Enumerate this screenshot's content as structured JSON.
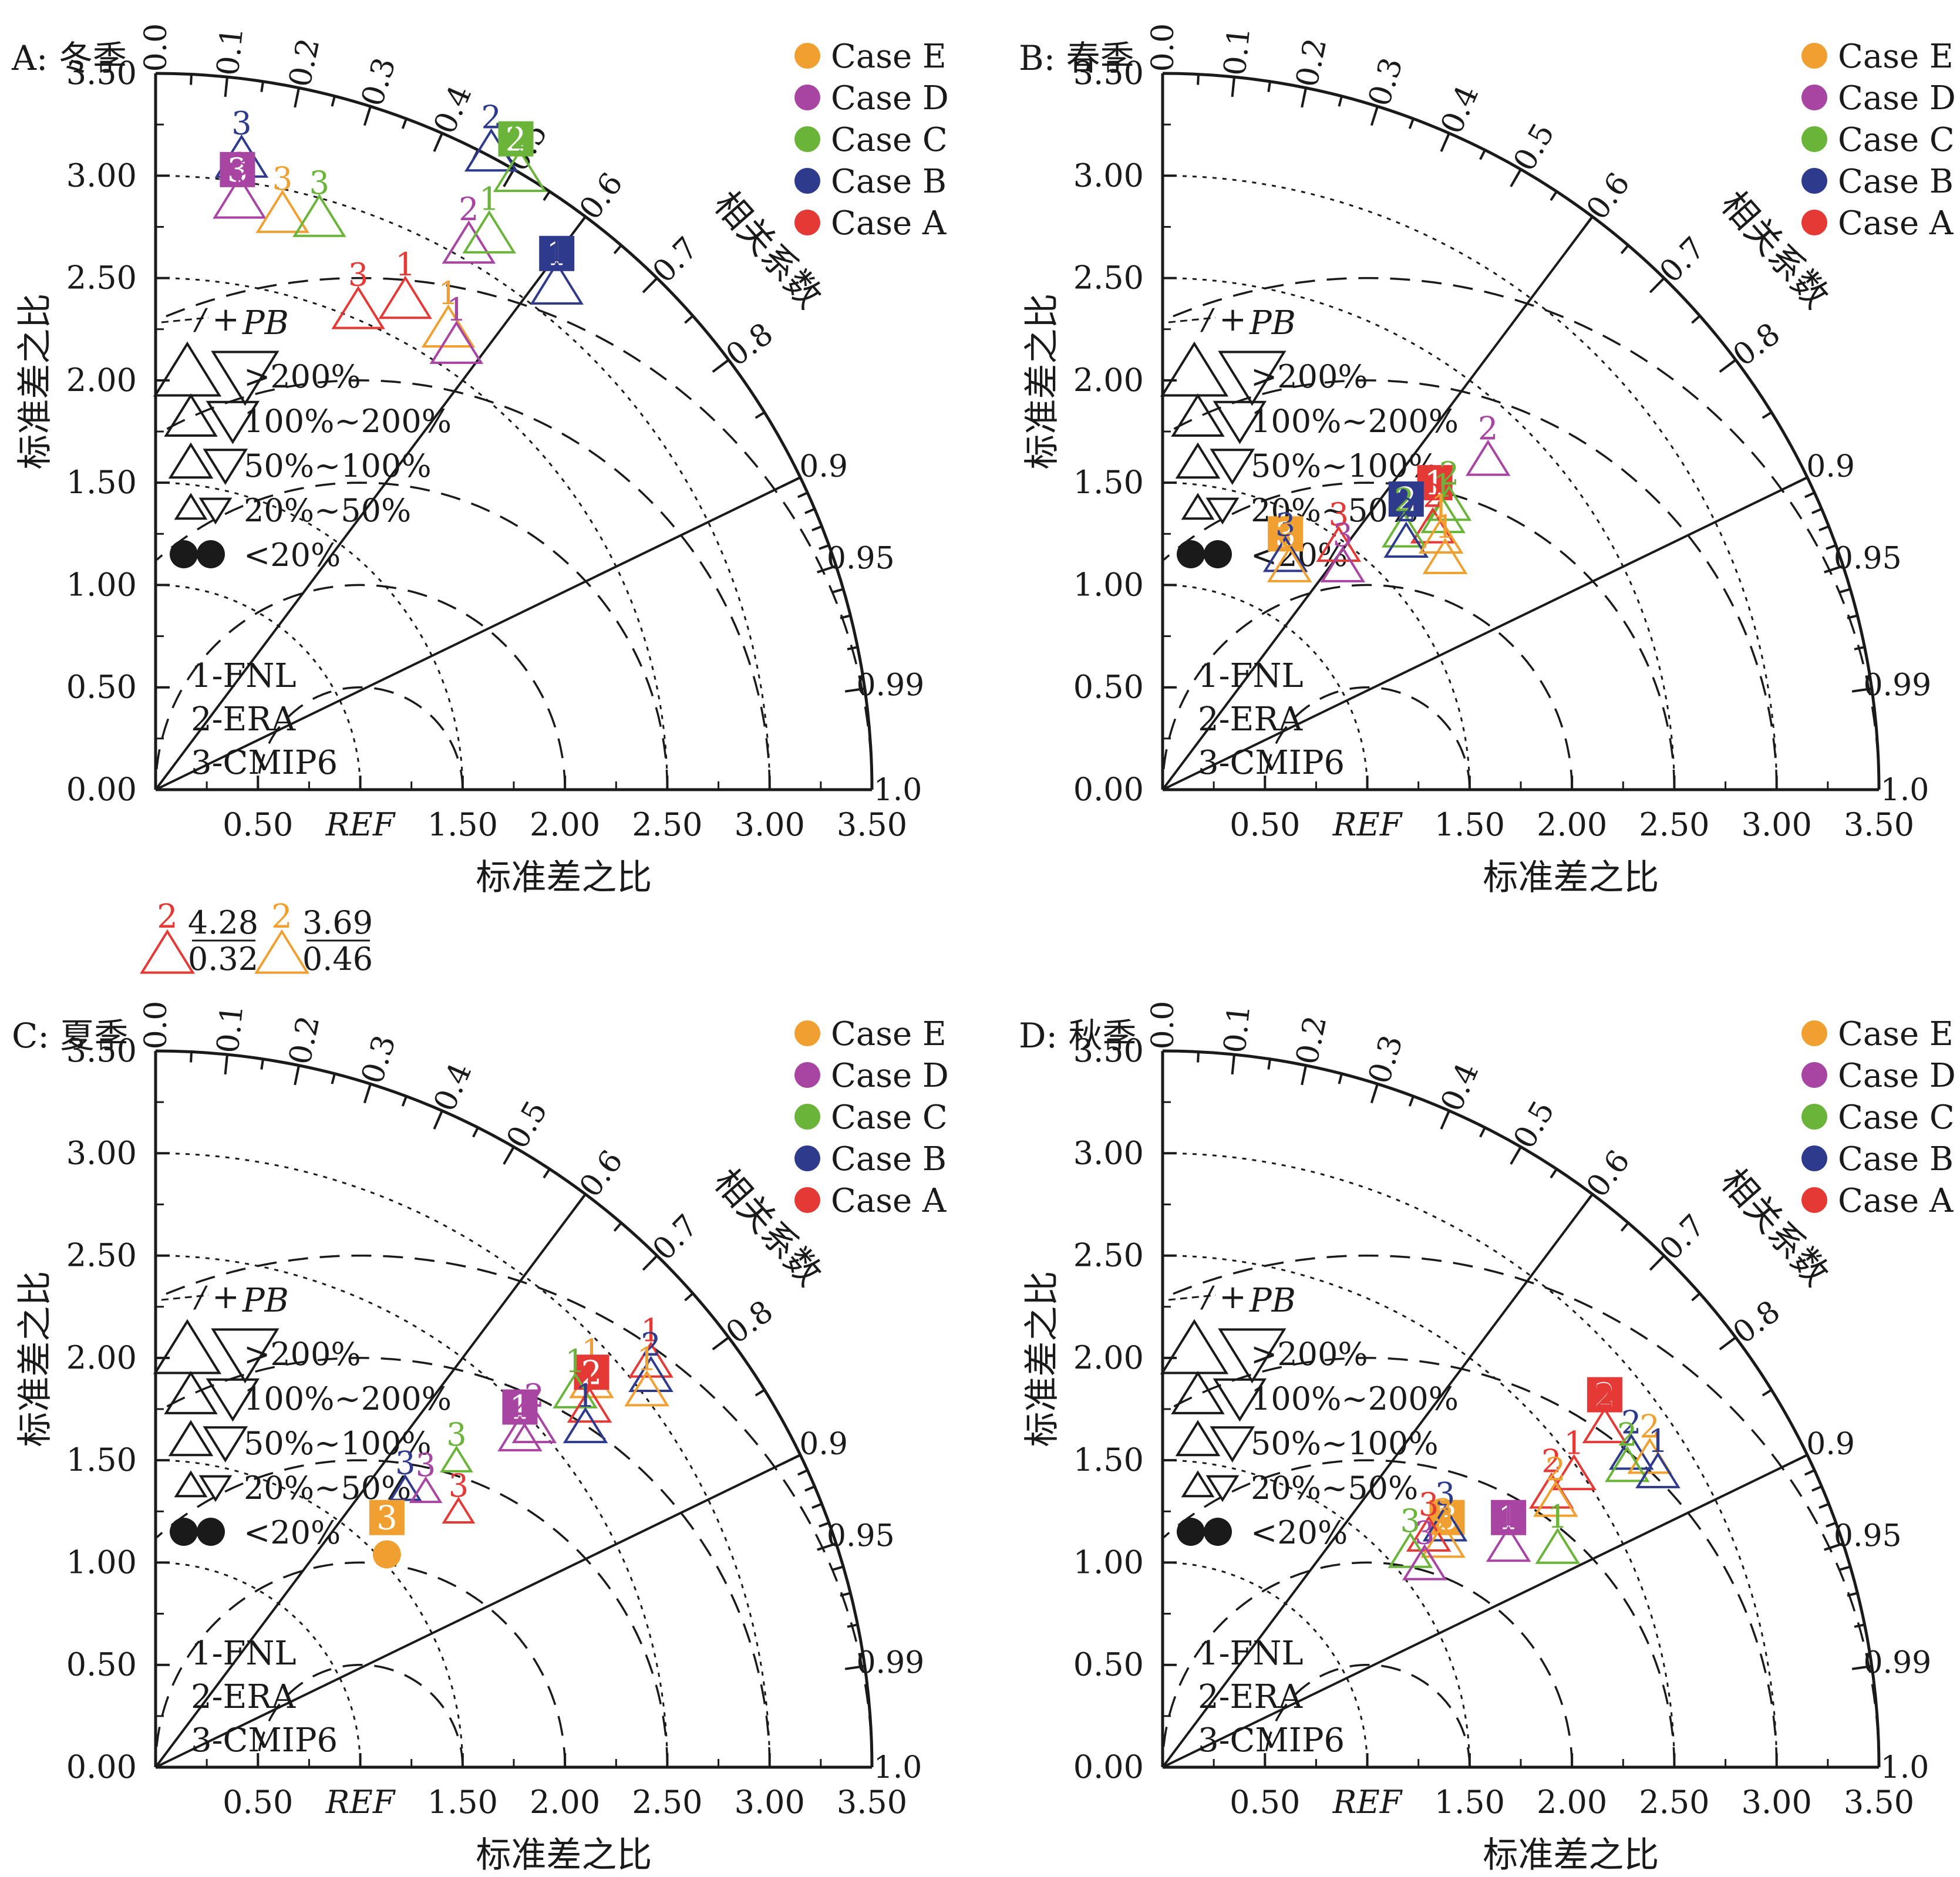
{
  "legend_common": {
    "pb_label": "PB",
    "size_classes": [
      ">200%",
      "100%~200%",
      "50%~100%",
      "20%~50%",
      "<20%"
    ],
    "dataset_keys": [
      "1-FNL",
      "2-ERA",
      "3-CMIP6"
    ]
  },
  "colors": {
    "Case A": "#e53935",
    "Case B": "#2e3a8c",
    "Case C": "#6ab43a",
    "Case D": "#a845a3",
    "Case E": "#f0a030",
    "axis": "#1a1a1a"
  },
  "offscale_note": [
    {
      "label": "2",
      "series": "Case A",
      "std": "4.28",
      "corr": "0.32"
    },
    {
      "label": "2",
      "series": "Case E",
      "std": "3.69",
      "corr": "0.46"
    }
  ],
  "chart_data": [
    {
      "type": "taylor",
      "title": "A: 冬季",
      "xlabel": "标准差之比",
      "ylabel": "标准差之比",
      "corr_label": "相关系数",
      "std_range": [
        0,
        3.5
      ],
      "std_ticks": [
        "0.00",
        "0.50",
        "1.00",
        "1.50",
        "2.00",
        "2.50",
        "3.00",
        "3.50"
      ],
      "x_ticks": [
        "0.50",
        "REF",
        "1.50",
        "2.00",
        "2.50",
        "3.00",
        "3.50"
      ],
      "corr_ticks": [
        "0.0",
        "0.1",
        "0.2",
        "0.3",
        "0.4",
        "0.5",
        "0.6",
        "0.7",
        "0.8",
        "0.9",
        "0.95",
        "0.99",
        "1.0"
      ],
      "legend": [
        "Case E",
        "Case D",
        "Case C",
        "Case B",
        "Case A"
      ],
      "points": [
        {
          "series": "Case B",
          "label": "3",
          "x": 0.42,
          "y": 3.07,
          "marker": "up",
          "pb": "100%~200%"
        },
        {
          "series": "Case D",
          "label": "3",
          "x": 0.4,
          "y": 3.03,
          "marker": "square",
          "pb": "<20%"
        },
        {
          "series": "Case D",
          "label": "3",
          "x": 0.41,
          "y": 2.87,
          "marker": "up",
          "pb": "100%~200%"
        },
        {
          "series": "Case E",
          "label": "3",
          "x": 0.62,
          "y": 2.8,
          "marker": "up",
          "pb": "100%~200%"
        },
        {
          "series": "Case C",
          "label": "3",
          "x": 0.8,
          "y": 2.78,
          "marker": "up",
          "pb": "100%~200%"
        },
        {
          "series": "Case B",
          "label": "2",
          "x": 1.64,
          "y": 3.1,
          "marker": "up",
          "pb": "100%~200%"
        },
        {
          "series": "Case C",
          "label": "2",
          "x": 1.76,
          "y": 3.18,
          "marker": "square",
          "pb": "<20%"
        },
        {
          "series": "Case C",
          "label": "2",
          "x": 1.78,
          "y": 3.0,
          "marker": "up",
          "pb": "100%~200%"
        },
        {
          "series": "Case D",
          "label": "2",
          "x": 1.53,
          "y": 2.65,
          "marker": "up",
          "pb": "100%~200%"
        },
        {
          "series": "Case C",
          "label": "1",
          "x": 1.63,
          "y": 2.7,
          "marker": "up",
          "pb": "100%~200%"
        },
        {
          "series": "Case B",
          "label": "1",
          "x": 1.96,
          "y": 2.62,
          "marker": "square",
          "pb": "<20%"
        },
        {
          "series": "Case B",
          "label": "1",
          "x": 1.96,
          "y": 2.45,
          "marker": "up",
          "pb": "100%~200%"
        },
        {
          "series": "Case A",
          "label": "3",
          "x": 0.99,
          "y": 2.33,
          "marker": "up",
          "pb": "100%~200%"
        },
        {
          "series": "Case A",
          "label": "1",
          "x": 1.22,
          "y": 2.38,
          "marker": "up",
          "pb": "100%~200%"
        },
        {
          "series": "Case E",
          "label": "1",
          "x": 1.43,
          "y": 2.24,
          "marker": "up",
          "pb": "100%~200%"
        },
        {
          "series": "Case D",
          "label": "1",
          "x": 1.47,
          "y": 2.16,
          "marker": "up",
          "pb": "100%~200%"
        }
      ]
    },
    {
      "type": "taylor",
      "title": "B: 春季",
      "xlabel": "标准差之比",
      "ylabel": "标准差之比",
      "corr_label": "相关系数",
      "std_range": [
        0,
        3.5
      ],
      "std_ticks": [
        "0.00",
        "0.50",
        "1.00",
        "1.50",
        "2.00",
        "2.50",
        "3.00",
        "3.50"
      ],
      "x_ticks": [
        "0.50",
        "REF",
        "1.50",
        "2.00",
        "2.50",
        "3.00",
        "3.50"
      ],
      "corr_ticks": [
        "0.0",
        "0.1",
        "0.2",
        "0.3",
        "0.4",
        "0.5",
        "0.6",
        "0.7",
        "0.8",
        "0.9",
        "0.95",
        "0.99",
        "1.0"
      ],
      "legend": [
        "Case E",
        "Case D",
        "Case C",
        "Case B",
        "Case A"
      ],
      "points": [
        {
          "series": "Case D",
          "label": "2",
          "x": 1.59,
          "y": 1.6,
          "marker": "up",
          "pb": "50%~100%"
        },
        {
          "series": "Case A",
          "label": "1",
          "x": 1.33,
          "y": 1.5,
          "marker": "square",
          "pb": "<20%"
        },
        {
          "series": "Case B",
          "label": "2",
          "x": 1.19,
          "y": 1.42,
          "marker": "square",
          "pb": "<20%"
        },
        {
          "series": "Case C",
          "label": "2",
          "x": 1.4,
          "y": 1.38,
          "marker": "up",
          "pb": "50%~100%"
        },
        {
          "series": "Case C",
          "label": "1",
          "x": 1.37,
          "y": 1.32,
          "marker": "up",
          "pb": "50%~100%"
        },
        {
          "series": "Case A",
          "label": "2",
          "x": 1.32,
          "y": 1.27,
          "marker": "up",
          "pb": "50%~100%"
        },
        {
          "series": "Case C",
          "label": "2",
          "x": 1.18,
          "y": 1.25,
          "marker": "up",
          "pb": "50%~100%"
        },
        {
          "series": "Case B",
          "label": "2",
          "x": 1.19,
          "y": 1.2,
          "marker": "up",
          "pb": "50%~100%"
        },
        {
          "series": "Case E",
          "label": "1",
          "x": 1.36,
          "y": 1.22,
          "marker": "up",
          "pb": "50%~100%"
        },
        {
          "series": "Case E",
          "label": "1",
          "x": 1.38,
          "y": 1.12,
          "marker": "up",
          "pb": "50%~100%"
        },
        {
          "series": "Case A",
          "label": "3",
          "x": 0.86,
          "y": 1.18,
          "marker": "up",
          "pb": "50%~100%"
        },
        {
          "series": "Case D",
          "label": "3",
          "x": 0.88,
          "y": 1.08,
          "marker": "up",
          "pb": "50%~100%"
        },
        {
          "series": "Case E",
          "label": "3",
          "x": 0.6,
          "y": 1.25,
          "marker": "square",
          "pb": "<20%"
        },
        {
          "series": "Case B",
          "label": "3",
          "x": 0.6,
          "y": 1.13,
          "marker": "up",
          "pb": "50%~100%"
        },
        {
          "series": "Case E",
          "label": "3",
          "x": 0.62,
          "y": 1.08,
          "marker": "up",
          "pb": "50%~100%"
        }
      ]
    },
    {
      "type": "taylor",
      "title": "C: 夏季",
      "xlabel": "标准差之比",
      "ylabel": "标准差之比",
      "corr_label": "相关系数",
      "std_range": [
        0,
        3.5
      ],
      "std_ticks": [
        "0.00",
        "0.50",
        "1.00",
        "1.50",
        "2.00",
        "2.50",
        "3.00",
        "3.50"
      ],
      "x_ticks": [
        "0.50",
        "REF",
        "1.50",
        "2.00",
        "2.50",
        "3.00",
        "3.50"
      ],
      "corr_ticks": [
        "0.0",
        "0.1",
        "0.2",
        "0.3",
        "0.4",
        "0.5",
        "0.6",
        "0.7",
        "0.8",
        "0.9",
        "0.95",
        "0.99",
        "1.0"
      ],
      "legend": [
        "Case E",
        "Case D",
        "Case C",
        "Case B",
        "Case A"
      ],
      "points": [
        {
          "series": "Case A",
          "label": "1",
          "x": 2.42,
          "y": 1.97,
          "marker": "up",
          "pb": "50%~100%"
        },
        {
          "series": "Case B",
          "label": "2",
          "x": 2.42,
          "y": 1.9,
          "marker": "up",
          "pb": "50%~100%"
        },
        {
          "series": "Case E",
          "label": "1",
          "x": 2.4,
          "y": 1.83,
          "marker": "up",
          "pb": "50%~100%"
        },
        {
          "series": "Case E",
          "label": "1",
          "x": 2.13,
          "y": 1.87,
          "marker": "up",
          "pb": "50%~100%"
        },
        {
          "series": "Case A",
          "label": "2",
          "x": 2.13,
          "y": 1.93,
          "marker": "square",
          "pb": "<20%"
        },
        {
          "series": "Case C",
          "label": "1",
          "x": 2.05,
          "y": 1.82,
          "marker": "up",
          "pb": "50%~100%"
        },
        {
          "series": "Case A",
          "label": "1",
          "x": 2.12,
          "y": 1.75,
          "marker": "up",
          "pb": "50%~100%"
        },
        {
          "series": "Case B",
          "label": "1",
          "x": 2.1,
          "y": 1.65,
          "marker": "up",
          "pb": "50%~100%"
        },
        {
          "series": "Case D",
          "label": "1",
          "x": 1.78,
          "y": 1.76,
          "marker": "square",
          "pb": "<20%"
        },
        {
          "series": "Case D",
          "label": "2",
          "x": 1.85,
          "y": 1.65,
          "marker": "up",
          "pb": "50%~100%"
        },
        {
          "series": "Case D",
          "label": "2",
          "x": 1.78,
          "y": 1.61,
          "marker": "up",
          "pb": "50%~100%"
        },
        {
          "series": "Case C",
          "label": "3",
          "x": 1.47,
          "y": 1.49,
          "marker": "up",
          "pb": "20%~50%"
        },
        {
          "series": "Case B",
          "label": "3",
          "x": 1.22,
          "y": 1.35,
          "marker": "up",
          "pb": "20%~50%"
        },
        {
          "series": "Case D",
          "label": "3",
          "x": 1.32,
          "y": 1.34,
          "marker": "up",
          "pb": "20%~50%"
        },
        {
          "series": "Case A",
          "label": "3",
          "x": 1.48,
          "y": 1.24,
          "marker": "up",
          "pb": "20%~50%"
        },
        {
          "series": "Case E",
          "label": "3",
          "x": 1.13,
          "y": 1.22,
          "marker": "square",
          "pb": "<20%"
        },
        {
          "series": "Case E",
          "label": "3",
          "x": 1.13,
          "y": 1.04,
          "marker": "circle",
          "pb": "<20%"
        }
      ]
    },
    {
      "type": "taylor",
      "title": "D: 秋季",
      "xlabel": "标准差之比",
      "ylabel": "标准差之比",
      "corr_label": "相关系数",
      "std_range": [
        0,
        3.5
      ],
      "std_ticks": [
        "0.00",
        "0.50",
        "1.00",
        "1.50",
        "2.00",
        "2.50",
        "3.00",
        "3.50"
      ],
      "x_ticks": [
        "0.50",
        "REF",
        "1.50",
        "2.00",
        "2.50",
        "3.00",
        "3.50"
      ],
      "corr_ticks": [
        "0.0",
        "0.1",
        "0.2",
        "0.3",
        "0.4",
        "0.5",
        "0.6",
        "0.7",
        "0.8",
        "0.9",
        "0.95",
        "0.99",
        "1.0"
      ],
      "legend": [
        "Case E",
        "Case D",
        "Case C",
        "Case B",
        "Case A"
      ],
      "points": [
        {
          "series": "Case A",
          "label": "2",
          "x": 2.16,
          "y": 1.82,
          "marker": "square",
          "pb": "<20%"
        },
        {
          "series": "Case A",
          "label": "2",
          "x": 2.16,
          "y": 1.65,
          "marker": "up",
          "pb": "50%~100%"
        },
        {
          "series": "Case B",
          "label": "2",
          "x": 2.29,
          "y": 1.52,
          "marker": "up",
          "pb": "50%~100%"
        },
        {
          "series": "Case E",
          "label": "2",
          "x": 2.38,
          "y": 1.5,
          "marker": "up",
          "pb": "50%~100%"
        },
        {
          "series": "Case C",
          "label": "2",
          "x": 2.27,
          "y": 1.46,
          "marker": "up",
          "pb": "50%~100%"
        },
        {
          "series": "Case B",
          "label": "1",
          "x": 2.42,
          "y": 1.43,
          "marker": "up",
          "pb": "50%~100%"
        },
        {
          "series": "Case A",
          "label": "1",
          "x": 2.01,
          "y": 1.42,
          "marker": "up",
          "pb": "50%~100%"
        },
        {
          "series": "Case A",
          "label": "2",
          "x": 1.9,
          "y": 1.33,
          "marker": "up",
          "pb": "50%~100%"
        },
        {
          "series": "Case E",
          "label": "2",
          "x": 1.92,
          "y": 1.29,
          "marker": "up",
          "pb": "50%~100%"
        },
        {
          "series": "Case D",
          "label": "1",
          "x": 1.69,
          "y": 1.22,
          "marker": "square",
          "pb": "<20%"
        },
        {
          "series": "Case D",
          "label": "1",
          "x": 1.69,
          "y": 1.07,
          "marker": "up",
          "pb": "50%~100%"
        },
        {
          "series": "Case C",
          "label": "1",
          "x": 1.93,
          "y": 1.06,
          "marker": "up",
          "pb": "50%~100%"
        },
        {
          "series": "Case E",
          "label": "3",
          "x": 1.39,
          "y": 1.22,
          "marker": "square",
          "pb": "<20%"
        },
        {
          "series": "Case B",
          "label": "3",
          "x": 1.38,
          "y": 1.17,
          "marker": "up",
          "pb": "50%~100%"
        },
        {
          "series": "Case A",
          "label": "3",
          "x": 1.3,
          "y": 1.12,
          "marker": "up",
          "pb": "50%~100%"
        },
        {
          "series": "Case E",
          "label": "3",
          "x": 1.37,
          "y": 1.09,
          "marker": "up",
          "pb": "50%~100%"
        },
        {
          "series": "Case C",
          "label": "3",
          "x": 1.21,
          "y": 1.04,
          "marker": "up",
          "pb": "50%~100%"
        },
        {
          "series": "Case D",
          "label": "3",
          "x": 1.28,
          "y": 0.98,
          "marker": "up",
          "pb": "50%~100%"
        }
      ]
    }
  ]
}
